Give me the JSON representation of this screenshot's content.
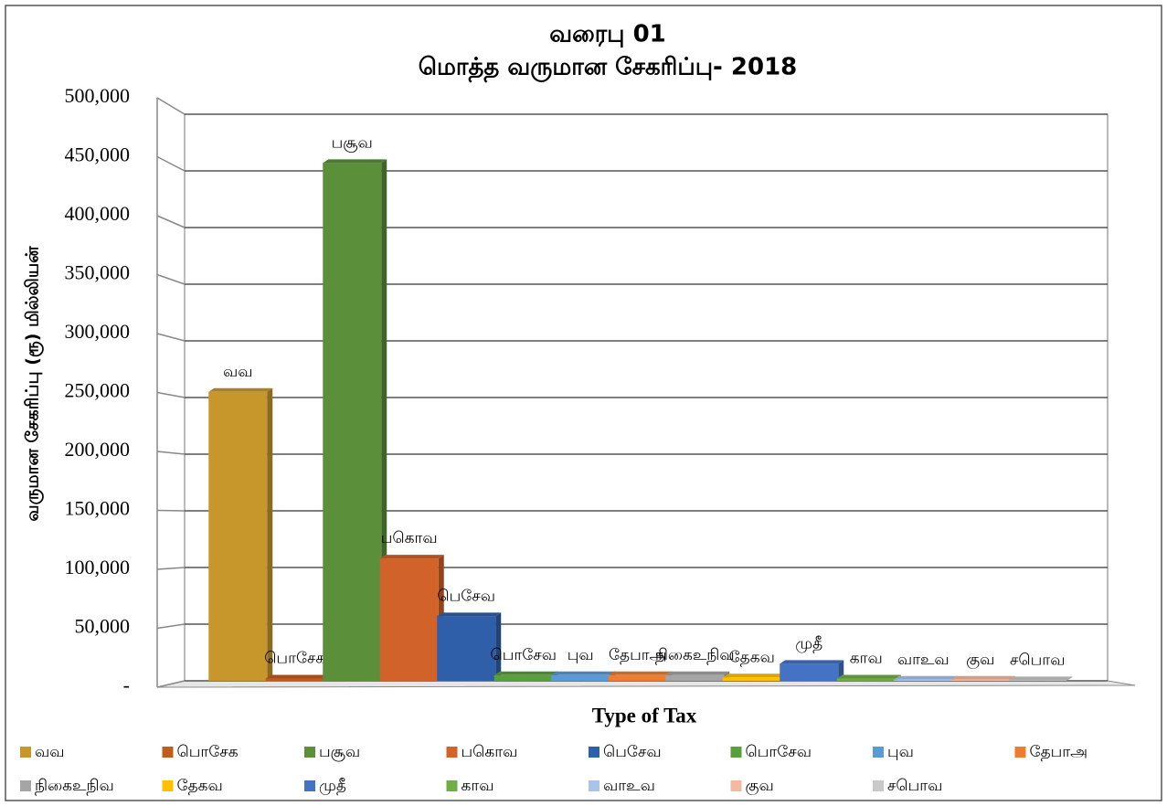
{
  "chart_data": {
    "type": "bar3d",
    "title": "வரைபு 01",
    "subtitle": "மொத்த வருமான சேகரிப்பு- 2018",
    "y_label": "வருமான சேகரிப்பு (ரூ) மில்லியன்",
    "x_label": "Type of Tax",
    "series": [
      {
        "name": "வவ",
        "color": "#c8972c",
        "values": [
          255000
        ]
      },
      {
        "name": "பொசேக",
        "color": "#c55a1e",
        "values": [
          2000
        ]
      },
      {
        "name": "பசூவ",
        "color": "#5b8f3a",
        "values": [
          457000
        ]
      },
      {
        "name": "பகொவ",
        "color": "#d0622a",
        "values": [
          108000
        ]
      },
      {
        "name": "பெசேவ",
        "color": "#2f5fa8",
        "values": [
          57000
        ]
      },
      {
        "name": "பொசேவ",
        "color": "#5a9e3e",
        "values": [
          5000
        ]
      },
      {
        "name": "புவ",
        "color": "#5b9bd5",
        "values": [
          5000
        ]
      },
      {
        "name": "தேபாஅ",
        "color": "#ed7d31",
        "values": [
          5000
        ]
      },
      {
        "name": "நிகைஉநிவ",
        "color": "#a5a5a5",
        "values": [
          5000
        ]
      },
      {
        "name": "தேகவ",
        "color": "#ffc000",
        "values": [
          3000
        ]
      },
      {
        "name": "முதீ",
        "color": "#4472c4",
        "values": [
          15000
        ]
      },
      {
        "name": "காவ",
        "color": "#70ad47",
        "values": [
          2000
        ]
      },
      {
        "name": "வாஉவ",
        "color": "#a9c4e8",
        "values": [
          1000
        ]
      },
      {
        "name": "குவ",
        "color": "#f4b9a0",
        "values": [
          1000
        ]
      },
      {
        "name": "சபொவ",
        "color": "#c9c9c9",
        "values": [
          500
        ]
      }
    ],
    "ylim": [
      0,
      500000
    ],
    "yticks": [
      {
        "value": 0,
        "label": "-"
      },
      {
        "value": 50000,
        "label": "50,000"
      },
      {
        "value": 100000,
        "label": "100,000"
      },
      {
        "value": 150000,
        "label": "150,000"
      },
      {
        "value": 200000,
        "label": "200,000"
      },
      {
        "value": 250000,
        "label": "250,000"
      },
      {
        "value": 300000,
        "label": "300,000"
      },
      {
        "value": 350000,
        "label": "350,000"
      },
      {
        "value": 400000,
        "label": "400,000"
      },
      {
        "value": 450000,
        "label": "450,000"
      },
      {
        "value": 500000,
        "label": "500,000"
      }
    ],
    "grid": true,
    "legend": "bottom"
  }
}
